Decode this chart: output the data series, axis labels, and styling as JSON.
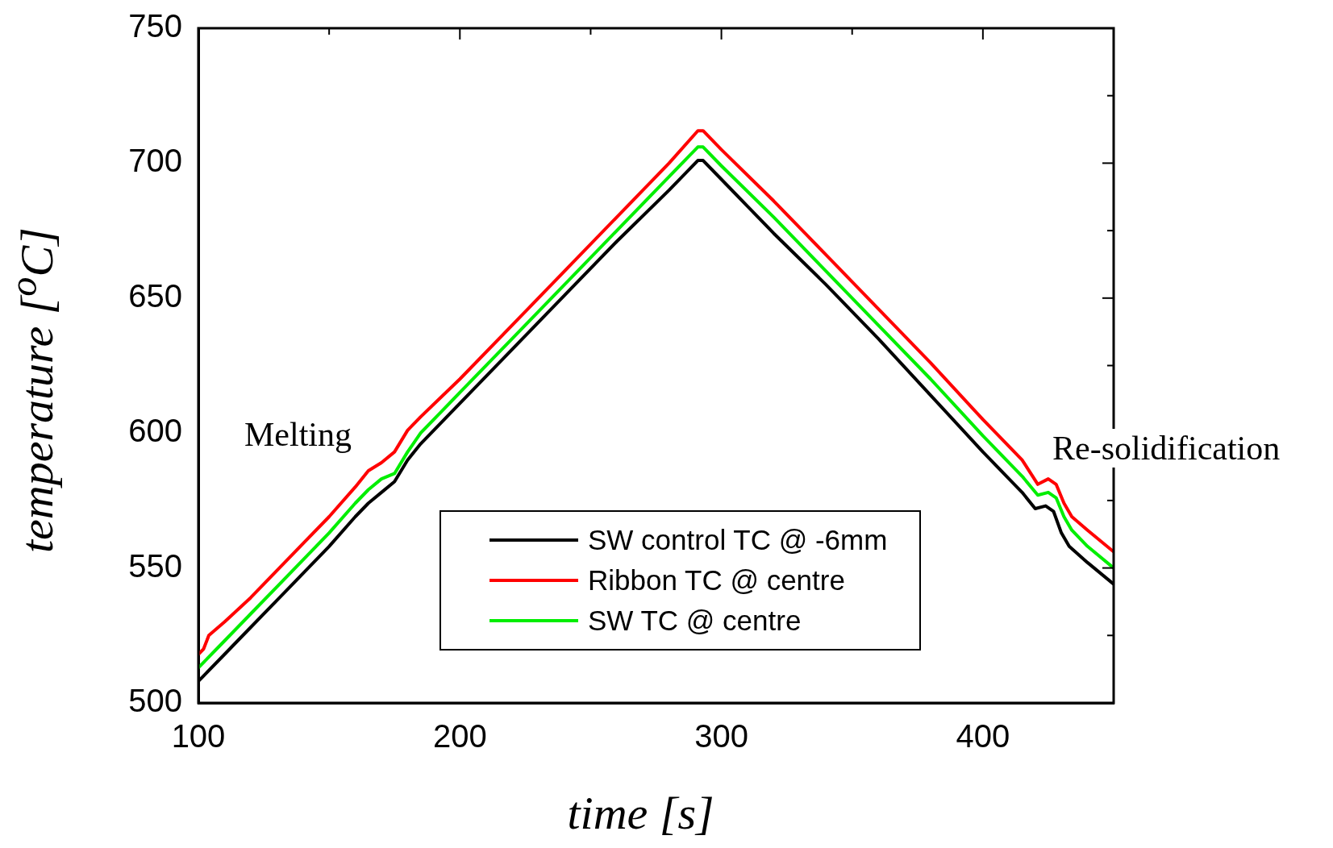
{
  "chart_data": {
    "type": "line",
    "xlabel": "time  [s]",
    "ylabel": "temperature  [$^{o}$C]",
    "xlim": [
      100,
      450
    ],
    "xticks": [
      100,
      {
        "value": 150,
        "label": null
      },
      200,
      {
        "value": 250,
        "label": null
      },
      300,
      {
        "value": 350,
        "label": null
      },
      400,
      {
        "value": 450,
        "label": null
      }
    ],
    "ylim": [
      500,
      750
    ],
    "yticks": [
      500,
      {
        "value": 525,
        "label": null
      },
      550,
      {
        "value": 575,
        "label": null
      },
      600,
      {
        "value": 625,
        "label": null
      },
      650,
      {
        "value": 675,
        "label": null
      },
      700,
      {
        "value": 725,
        "label": null
      },
      750
    ],
    "grid": false,
    "legend": "bottom right",
    "marker": "none",
    "line_style": "solid",
    "annotations": [
      "Melting",
      "Re-solidification"
    ],
    "series": [
      {
        "name": "SW control TC @ -6mm",
        "color": "#000000",
        "x": [
          100,
          110,
          120,
          130,
          140,
          150,
          160,
          165,
          170,
          175,
          180,
          185,
          200,
          220,
          240,
          260,
          280,
          291,
          293,
          300,
          320,
          340,
          360,
          380,
          400,
          415,
          420,
          424,
          427,
          430,
          433,
          440,
          450
        ],
        "values": [
          508,
          518,
          528,
          538,
          548,
          558,
          569,
          574,
          578,
          582,
          590,
          596,
          611,
          631,
          651,
          671,
          690,
          701,
          701,
          694,
          674,
          655,
          635,
          614,
          593,
          578,
          572,
          573,
          571,
          563,
          558,
          552,
          544
        ]
      },
      {
        "name": "Ribbon TC @ centre",
        "color": "#ff0000",
        "x": [
          100,
          102,
          104,
          110,
          120,
          130,
          140,
          150,
          160,
          165,
          170,
          175,
          180,
          185,
          200,
          220,
          240,
          260,
          280,
          291,
          293,
          300,
          320,
          340,
          360,
          380,
          400,
          415,
          421,
          425,
          428,
          431,
          434,
          440,
          450
        ],
        "values": [
          518,
          520,
          525,
          530,
          539,
          549,
          559,
          569,
          580,
          586,
          589,
          593,
          601,
          606,
          620,
          640,
          660,
          680,
          700,
          712,
          712,
          705,
          686,
          666,
          646,
          626,
          605,
          590,
          581,
          583,
          581,
          574,
          569,
          564,
          556
        ]
      },
      {
        "name": "SW TC @ centre",
        "color": "#00ee00",
        "x": [
          100,
          110,
          120,
          130,
          140,
          150,
          160,
          165,
          170,
          175,
          180,
          185,
          200,
          220,
          240,
          260,
          280,
          291,
          293,
          300,
          320,
          340,
          360,
          380,
          400,
          415,
          421,
          425,
          428,
          431,
          434,
          440,
          450
        ],
        "values": [
          513,
          523,
          533,
          543,
          553,
          563,
          574,
          579,
          583,
          585,
          593,
          600,
          615,
          635,
          655,
          675,
          695,
          706,
          706,
          699,
          680,
          660,
          640,
          620,
          599,
          584,
          577,
          578,
          576,
          569,
          564,
          558,
          550
        ]
      }
    ]
  }
}
